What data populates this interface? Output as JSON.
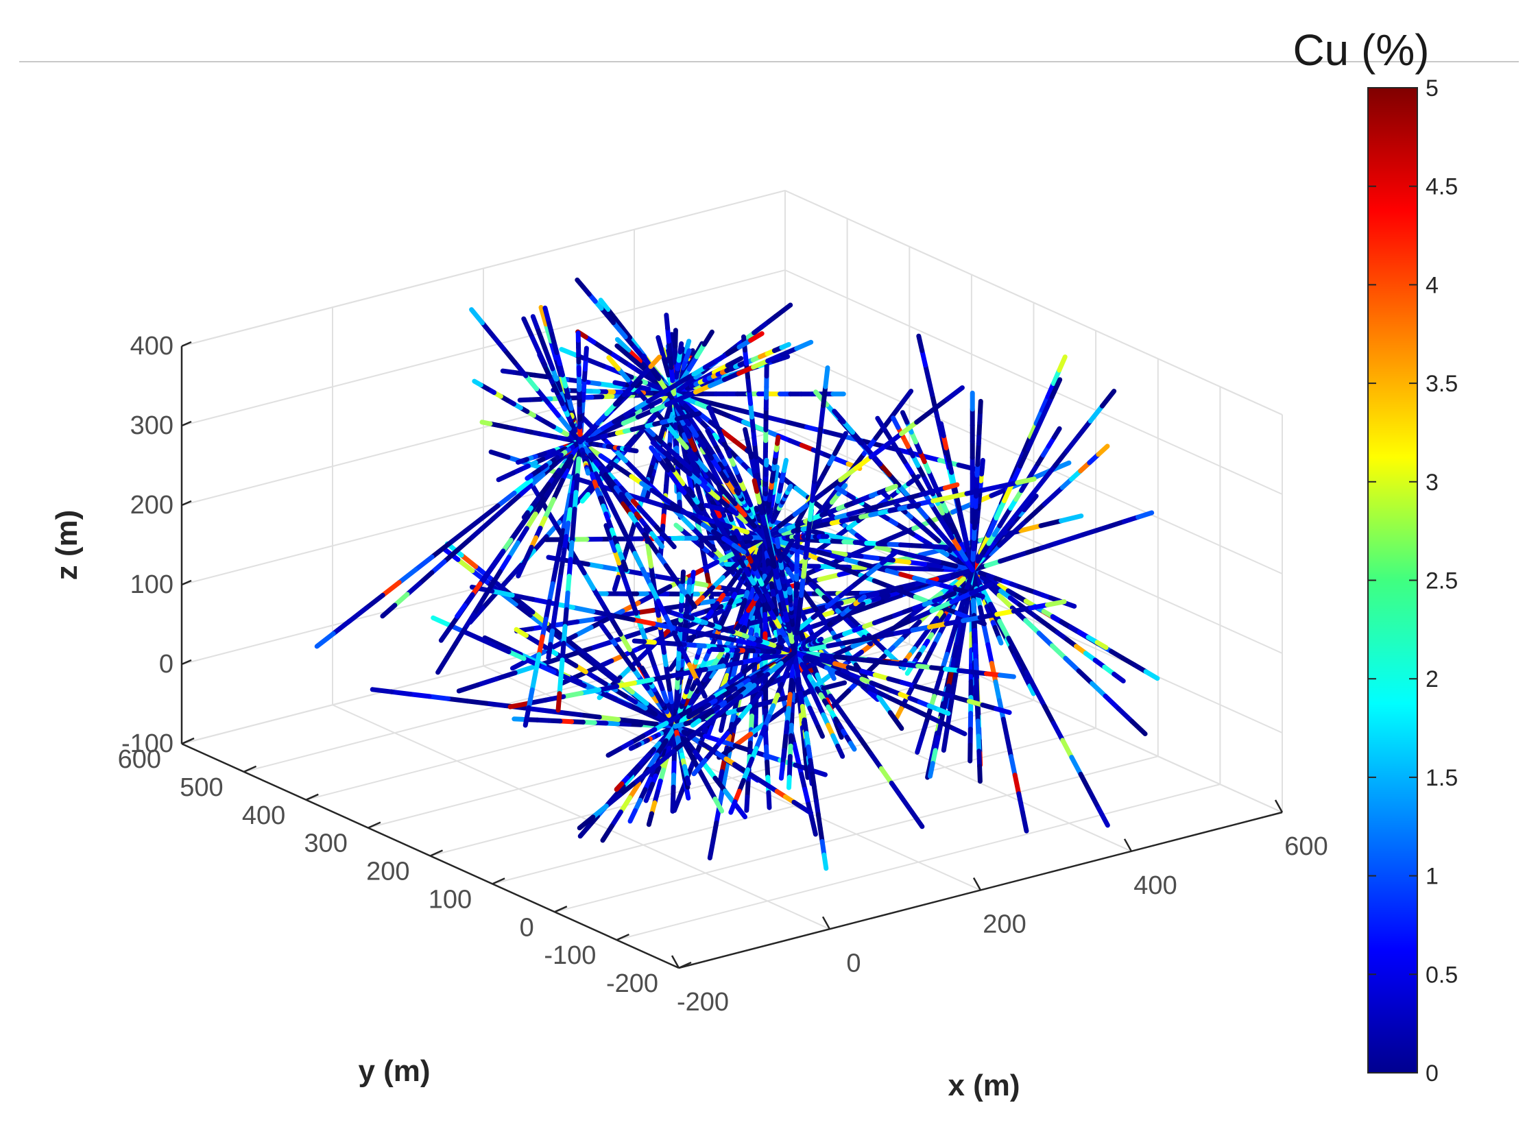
{
  "chart_data": {
    "type": "scatter",
    "subtype": "3d-drillhole-scatter",
    "xlabel": "x (m)",
    "ylabel": "y (m)",
    "zlabel": "z (m)",
    "xlim": [
      -200,
      600
    ],
    "ylim": [
      -200,
      600
    ],
    "zlim": [
      -100,
      400
    ],
    "x_ticks": [
      -200,
      0,
      200,
      400,
      600
    ],
    "y_ticks": [
      -200,
      -100,
      0,
      100,
      200,
      300,
      400,
      500,
      600
    ],
    "z_ticks": [
      -100,
      0,
      100,
      200,
      300,
      400
    ],
    "x_tick_labels": [
      "-200",
      "0",
      "200",
      "400",
      "600"
    ],
    "y_tick_labels": [
      "-200",
      "-100",
      "0",
      "100",
      "200",
      "300",
      "400",
      "500",
      "600"
    ],
    "z_tick_labels": [
      "-100",
      "0",
      "100",
      "200",
      "300",
      "400"
    ],
    "grid": true,
    "colormap": "jet",
    "color_variable": "Cu grade",
    "colorbar": {
      "title": "Cu (%)",
      "range": [
        0,
        5
      ],
      "ticks": [
        0,
        0.5,
        1,
        1.5,
        2,
        2.5,
        3,
        3.5,
        4,
        4.5,
        5
      ],
      "tick_labels": [
        "0",
        "0.5",
        "1",
        "1.5",
        "2",
        "2.5",
        "3",
        "3.5",
        "4",
        "4.5",
        "5"
      ],
      "position": "right"
    },
    "drillhole_clusters": [
      {
        "collar": [
          230,
          330,
          330
        ],
        "count": 55
      },
      {
        "collar": [
          120,
          60,
          200
        ],
        "count": 40
      },
      {
        "collar": [
          420,
          80,
          150
        ],
        "count": 50
      },
      {
        "collar": [
          350,
          330,
          120
        ],
        "count": 40
      },
      {
        "collar": [
          100,
          170,
          0
        ],
        "count": 40
      },
      {
        "collar": [
          250,
          160,
          60
        ],
        "count": 40
      },
      {
        "collar": [
          180,
          420,
          250
        ],
        "count": 40
      }
    ]
  }
}
